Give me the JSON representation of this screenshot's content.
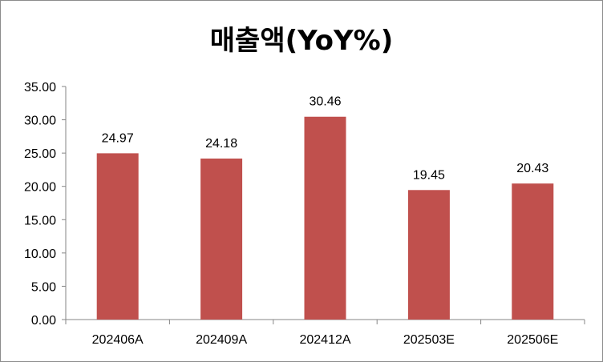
{
  "chart_data": {
    "type": "bar",
    "title": "매출액(YoY%)",
    "categories": [
      "202406A",
      "202409A",
      "202412A",
      "202503E",
      "202506E"
    ],
    "values": [
      24.97,
      24.18,
      30.46,
      19.45,
      20.43
    ],
    "data_labels": [
      "24.97",
      "24.18",
      "30.46",
      "19.45",
      "20.43"
    ],
    "ylim": [
      0,
      35
    ],
    "yticks": [
      0,
      5,
      10,
      15,
      20,
      25,
      30,
      35
    ],
    "ytick_labels": [
      "0.00",
      "5.00",
      "10.00",
      "15.00",
      "20.00",
      "25.00",
      "30.00",
      "35.00"
    ],
    "bar_color": "#c0504d",
    "grid": false,
    "legend": "none"
  }
}
